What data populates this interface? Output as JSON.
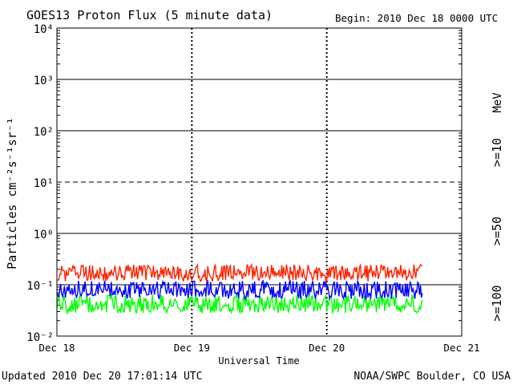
{
  "chart_data": {
    "type": "line",
    "title": "GOES13 Proton Flux (5 minute data)",
    "begin_label": "Begin: 2010 Dec 18 0000 UTC",
    "xlabel": "Universal Time",
    "ylabel": "Particles cm⁻²s⁻¹sr⁻¹",
    "units_label": "MeV",
    "y_scale": "log",
    "ylim": [
      0.01,
      10000
    ],
    "y_tick_labels": [
      "10⁴",
      "10³",
      "10²",
      "10¹",
      "10⁰",
      "10⁻¹",
      "10⁻²"
    ],
    "x_range_days": [
      "Dec 18",
      "Dec 21"
    ],
    "x_tick_labels": [
      "Dec 18",
      "Dec 19",
      "Dec 20",
      "Dec 21"
    ],
    "data_end": "Dec 20 17:00",
    "series": [
      {
        "name": ">=10",
        "color": "#ff2200",
        "base": 0.16,
        "spread": 0.55,
        "max": 0.3
      },
      {
        "name": ">=50",
        "color": "#0000ff",
        "base": 0.075,
        "spread": 0.6,
        "max": 0.12
      },
      {
        "name": ">=100",
        "color": "#00ff00",
        "base": 0.04,
        "spread": 0.6,
        "max": 0.075
      }
    ],
    "grid": true
  },
  "footer": {
    "updated": "Updated 2010 Dec 20 17:01:14 UTC",
    "credit": "NOAA/SWPC Boulder, CO USA"
  }
}
